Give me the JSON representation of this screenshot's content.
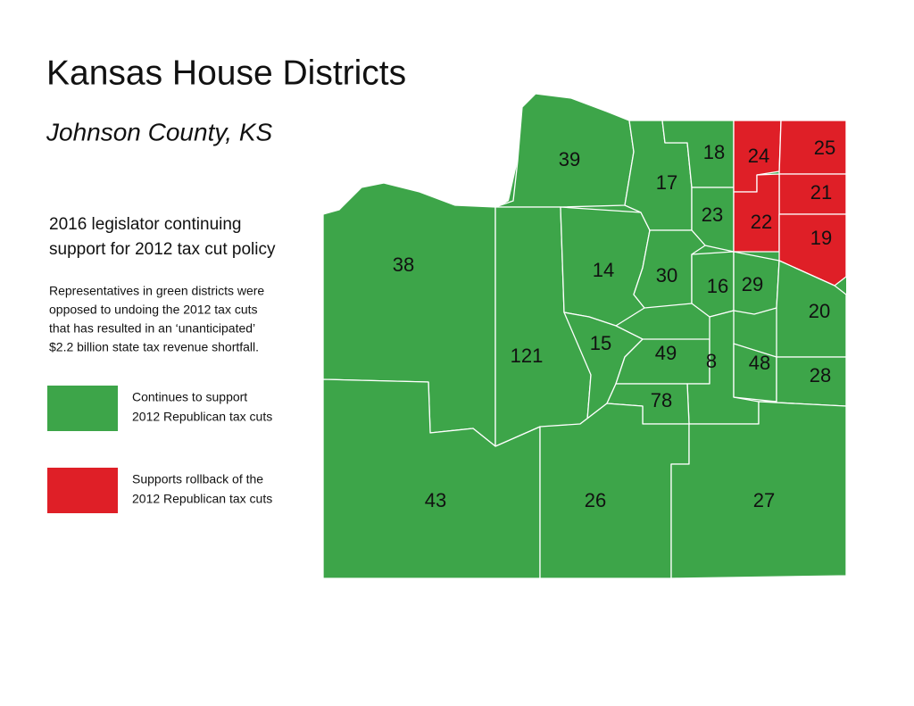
{
  "header": {
    "title": "Kansas House Districts",
    "subtitle": "Johnson County, KS"
  },
  "heading": {
    "lines": [
      "2016  legislator continuing",
      "support for 2012 tax cut policy"
    ]
  },
  "description": {
    "lines": [
      "Representatives in green districts were",
      "opposed to undoing the 2012 tax cuts",
      "that has resulted in an ‘unanticipated’",
      "$2.2 billion state tax revenue shortfall."
    ]
  },
  "legend": [
    {
      "color": "#3da549",
      "lines": [
        "Continues to support",
        "2012 Republican tax cuts"
      ]
    },
    {
      "color": "#df1f27",
      "lines": [
        "Supports rollback of the",
        "2012 Republican tax cuts"
      ]
    }
  ],
  "districts": [
    {
      "label": "39",
      "color": "#3da549"
    },
    {
      "label": "38",
      "color": "#3da549"
    },
    {
      "label": "43",
      "color": "#3da549"
    },
    {
      "label": "121",
      "color": "#3da549"
    },
    {
      "label": "14",
      "color": "#3da549"
    },
    {
      "label": "15",
      "color": "#3da549"
    },
    {
      "label": "17",
      "color": "#3da549"
    },
    {
      "label": "18",
      "color": "#3da549"
    },
    {
      "label": "23",
      "color": "#3da549"
    },
    {
      "label": "24",
      "color": "#df1f27"
    },
    {
      "label": "25",
      "color": "#df1f27"
    },
    {
      "label": "21",
      "color": "#df1f27"
    },
    {
      "label": "22",
      "color": "#df1f27"
    },
    {
      "label": "19",
      "color": "#df1f27"
    },
    {
      "label": "30",
      "color": "#3da549"
    },
    {
      "label": "16",
      "color": "#3da549"
    },
    {
      "label": "29",
      "color": "#3da549"
    },
    {
      "label": "20",
      "color": "#3da549"
    },
    {
      "label": "49",
      "color": "#3da549"
    },
    {
      "label": "8",
      "color": "#3da549"
    },
    {
      "label": "48",
      "color": "#3da549"
    },
    {
      "label": "28",
      "color": "#3da549"
    },
    {
      "label": "78",
      "color": "#3da549"
    },
    {
      "label": "26",
      "color": "#3da549"
    },
    {
      "label": "27",
      "color": "#3da549"
    }
  ]
}
